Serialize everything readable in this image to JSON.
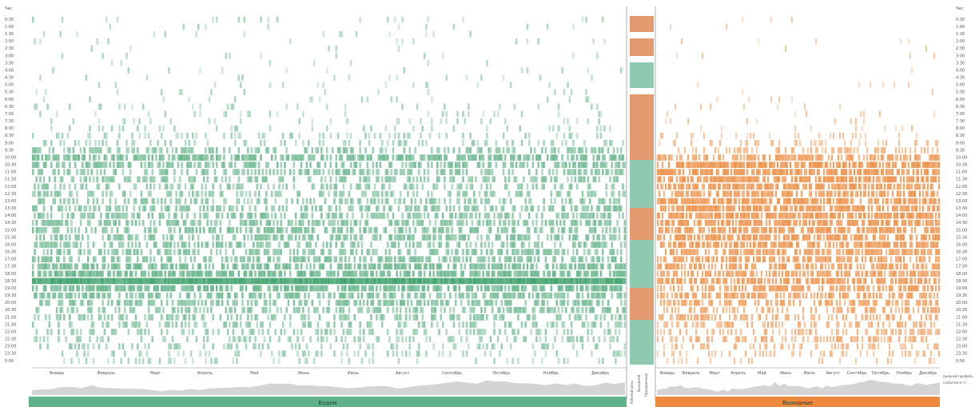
{
  "chart_data": {
    "type": "heatmap",
    "axis_title_left": "Час",
    "axis_title_right": "Час",
    "hours": [
      "0:30",
      "1:00",
      "1:30",
      "2:00",
      "2:30",
      "3:00",
      "3:30",
      "4:00",
      "4:30",
      "5:00",
      "5:30",
      "6:00",
      "6:30",
      "7:00",
      "7:30",
      "8:00",
      "8:30",
      "9:00",
      "9:30",
      "10:00",
      "10:30",
      "11:00",
      "11:30",
      "12:00",
      "12:30",
      "13:00",
      "13:30",
      "14:00",
      "14:30",
      "15:00",
      "15:30",
      "16:00",
      "16:30",
      "17:00",
      "17:30",
      "18:00",
      "18:30",
      "19:00",
      "19:30",
      "20:00",
      "20:30",
      "21:00",
      "21:30",
      "22:00",
      "22:30",
      "23:00",
      "23:30",
      "0:00"
    ],
    "months": [
      "Январь",
      "Февраль",
      "Март",
      "Апрель",
      "Май",
      "Июнь",
      "Июль",
      "Август",
      "Сентябрь",
      "Октябрь",
      "Ноябрь",
      "Декабрь"
    ],
    "panels": [
      {
        "name": "Будни",
        "color": "#5fb28a",
        "weekday_bar": "#5fb28a",
        "intensity_by_hour": [
          0.05,
          0.03,
          0.02,
          0.02,
          0.02,
          0.02,
          0.02,
          0.03,
          0.03,
          0.03,
          0.04,
          0.05,
          0.05,
          0.07,
          0.09,
          0.12,
          0.15,
          0.2,
          0.35,
          0.5,
          0.42,
          0.38,
          0.33,
          0.3,
          0.3,
          0.33,
          0.38,
          0.38,
          0.4,
          0.42,
          0.4,
          0.38,
          0.38,
          0.42,
          0.5,
          0.55,
          0.9,
          0.55,
          0.45,
          0.4,
          0.35,
          0.32,
          0.28,
          0.25,
          0.22,
          0.2,
          0.15,
          0.1
        ]
      },
      {
        "name": "Выходные",
        "color": "#ee8a3e",
        "weekday_bar": "#ee8a3e",
        "intensity_by_hour": [
          0.02,
          0.03,
          0.02,
          0.02,
          0.01,
          0.01,
          0.01,
          0.01,
          0.01,
          0.01,
          0.02,
          0.02,
          0.03,
          0.04,
          0.05,
          0.06,
          0.1,
          0.15,
          0.25,
          0.45,
          0.6,
          0.6,
          0.6,
          0.55,
          0.55,
          0.58,
          0.58,
          0.6,
          0.58,
          0.55,
          0.55,
          0.55,
          0.5,
          0.5,
          0.5,
          0.5,
          0.55,
          0.5,
          0.45,
          0.4,
          0.35,
          0.35,
          0.32,
          0.28,
          0.3,
          0.22,
          0.18,
          0.12
        ]
      }
    ],
    "middle_labels": [
      "Рабочий день",
      "Выходной",
      "Праздничный"
    ],
    "right_note": [
      "дневной профиль",
      "(события в ч.)"
    ],
    "x_label": "",
    "y_label": "Час",
    "legend": "none",
    "grid": false
  }
}
